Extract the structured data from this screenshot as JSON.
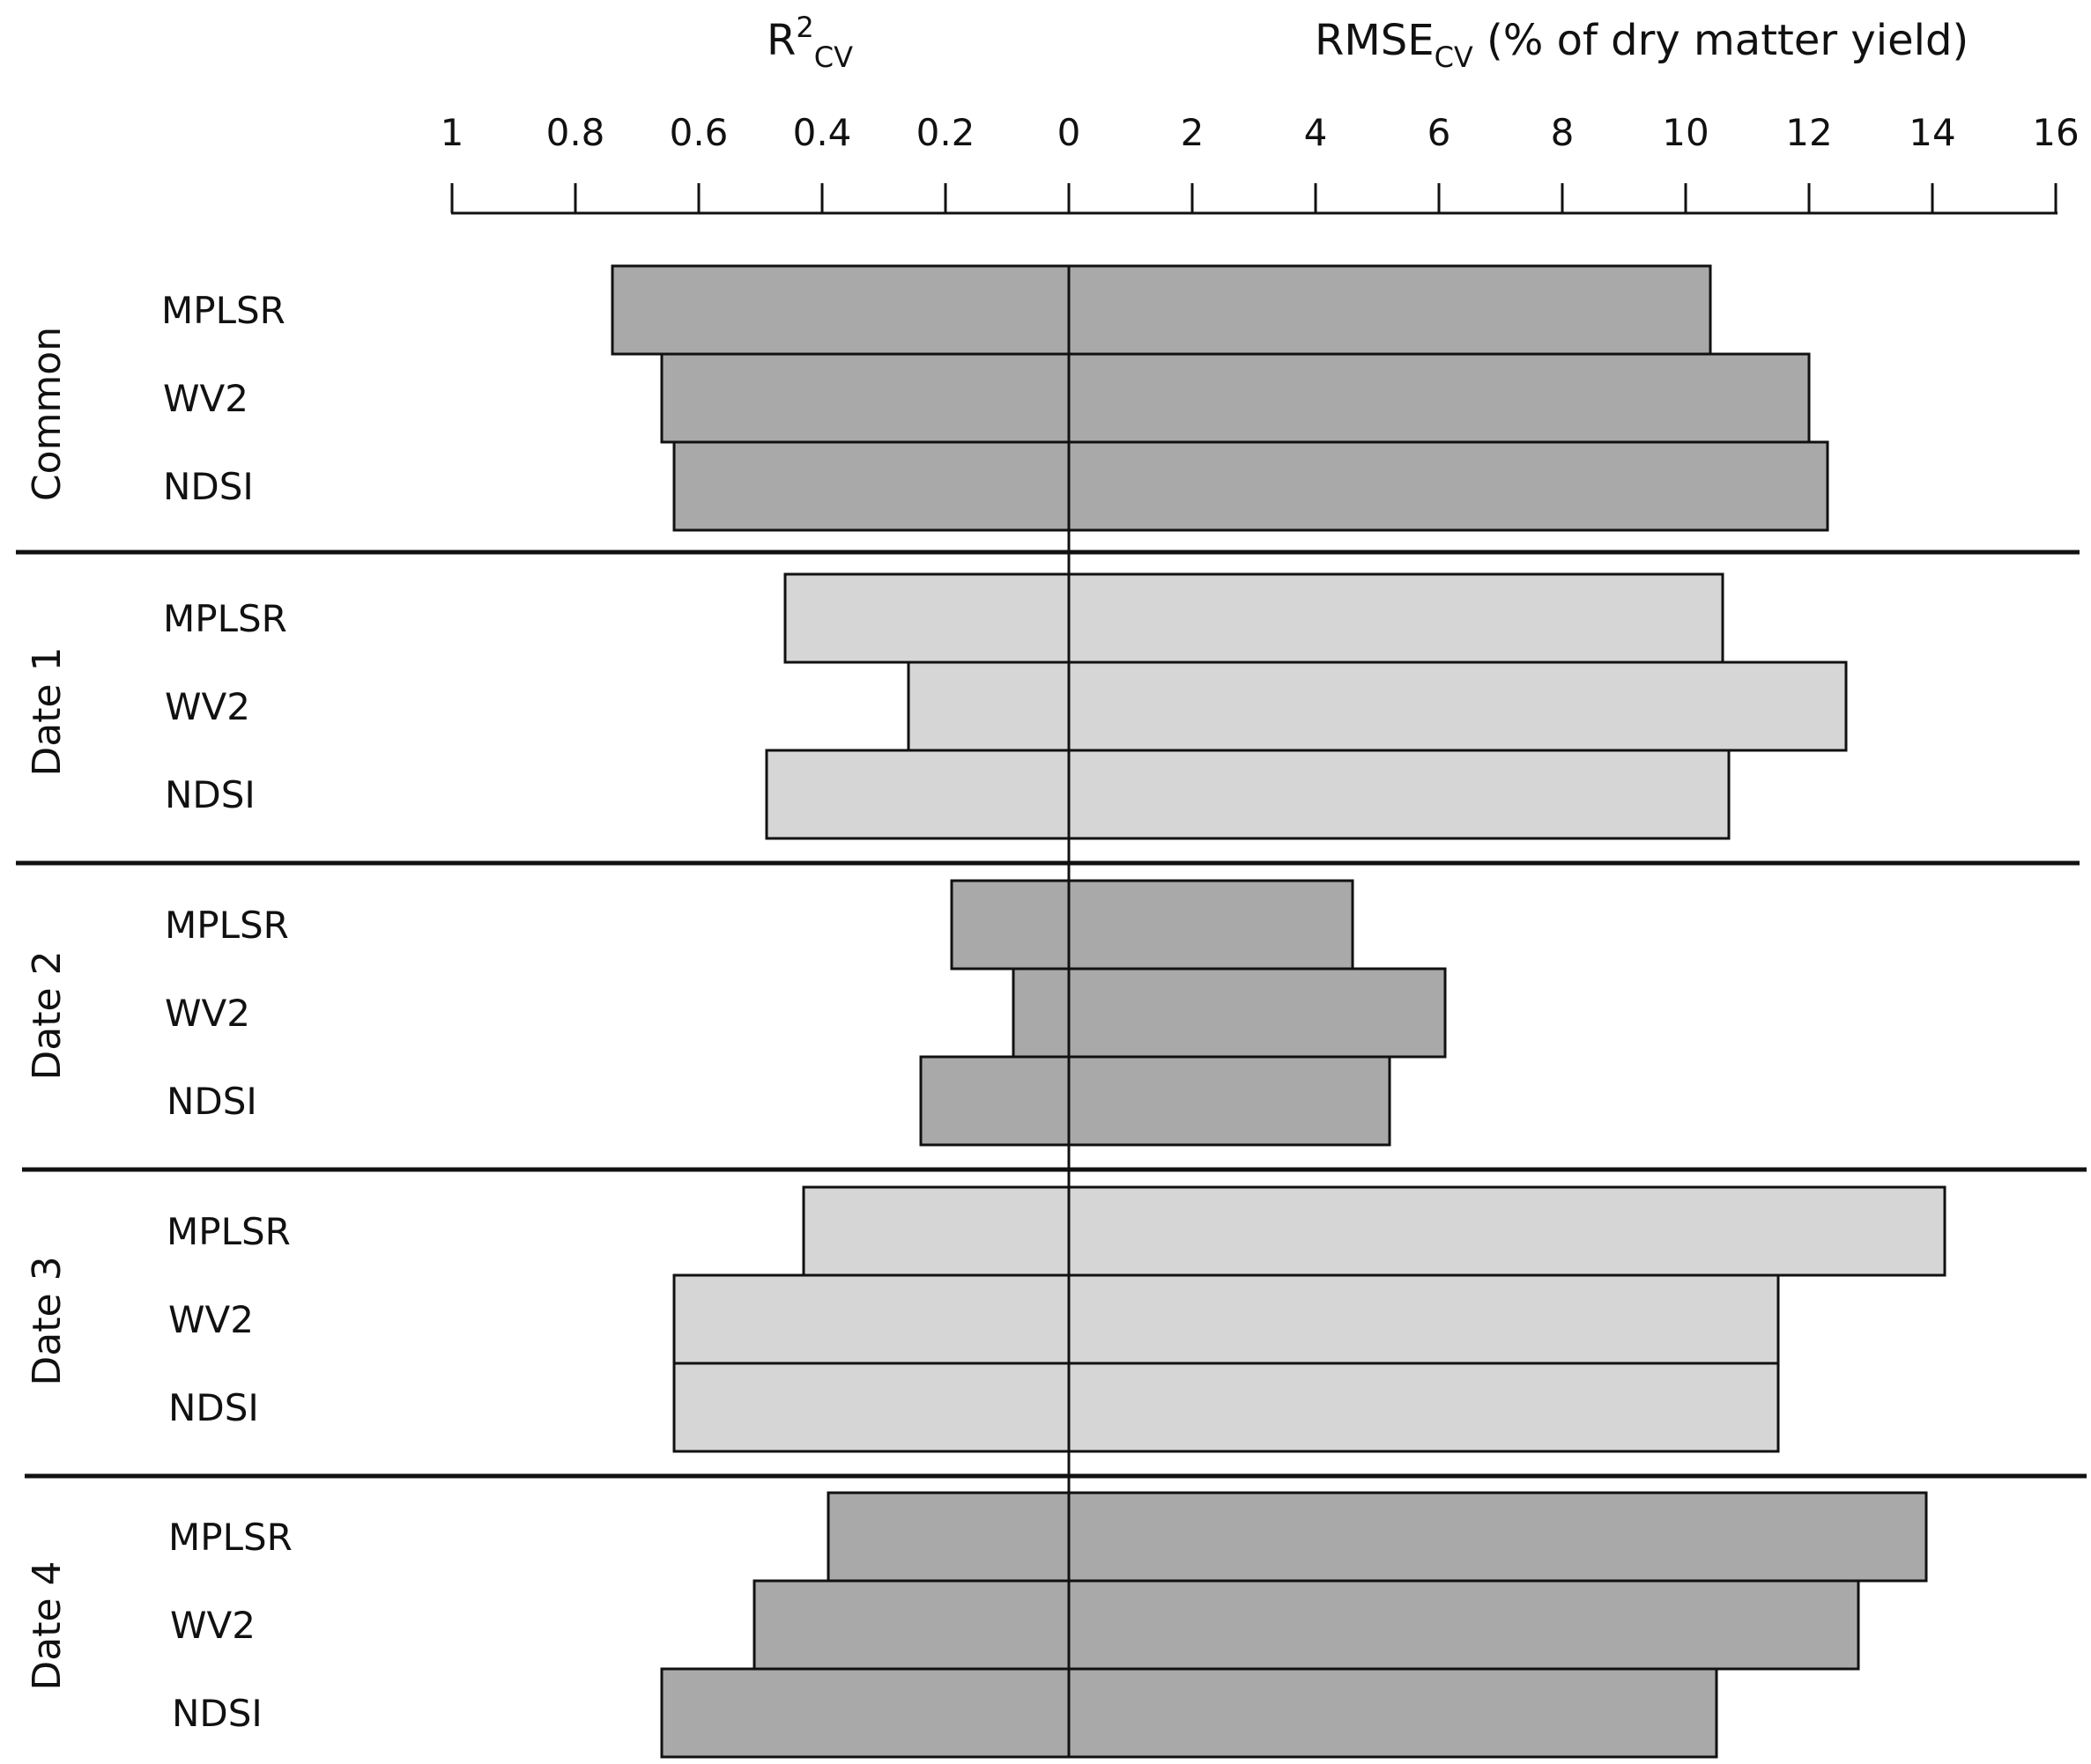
{
  "chart_data": {
    "type": "bar",
    "orientation": "horizontal-butterfly",
    "left_axis": {
      "title_main": "R",
      "title_sup": "2",
      "title_sub": "CV",
      "ticks": [
        "1",
        "0.8",
        "0.6",
        "0.4",
        "0.2",
        "0"
      ],
      "range": [
        1,
        0
      ]
    },
    "right_axis": {
      "title_main": "RMSE",
      "title_sub": "CV",
      "title_rest": " (% of dry matter yield)",
      "ticks": [
        "2",
        "4",
        "6",
        "8",
        "10",
        "12",
        "14",
        "16"
      ],
      "range": [
        0,
        16
      ]
    },
    "groups": [
      {
        "name": "Common",
        "color": "#a9a9a9",
        "rows": [
          {
            "label": "MPLSR",
            "r2": 0.74,
            "rmse": 10.4
          },
          {
            "label": "WV2",
            "r2": 0.66,
            "rmse": 12.0
          },
          {
            "label": "NDSI",
            "r2": 0.64,
            "rmse": 12.3
          }
        ]
      },
      {
        "name": "Date 1",
        "color": "#d6d6d6",
        "rows": [
          {
            "label": "MPLSR",
            "r2": 0.46,
            "rmse": 10.6
          },
          {
            "label": "WV2",
            "r2": 0.26,
            "rmse": 12.6
          },
          {
            "label": "NDSI",
            "r2": 0.49,
            "rmse": 10.7
          }
        ]
      },
      {
        "name": "Date 2",
        "color": "#a9a9a9",
        "rows": [
          {
            "label": "MPLSR",
            "r2": 0.19,
            "rmse": 4.6
          },
          {
            "label": "WV2",
            "r2": 0.09,
            "rmse": 6.1
          },
          {
            "label": "NDSI",
            "r2": 0.24,
            "rmse": 5.2
          }
        ]
      },
      {
        "name": "Date 3",
        "color": "#d6d6d6",
        "rows": [
          {
            "label": "MPLSR",
            "r2": 0.43,
            "rmse": 14.2
          },
          {
            "label": "WV2",
            "r2": 0.64,
            "rmse": 11.5
          },
          {
            "label": "NDSI",
            "r2": 0.64,
            "rmse": 11.5
          }
        ]
      },
      {
        "name": "Date 4",
        "color": "#a9a9a9",
        "rows": [
          {
            "label": "MPLSR",
            "r2": 0.39,
            "rmse": 13.9
          },
          {
            "label": "WV2",
            "r2": 0.51,
            "rmse": 12.8
          },
          {
            "label": "NDSI",
            "r2": 0.66,
            "rmse": 10.5
          }
        ]
      }
    ]
  }
}
